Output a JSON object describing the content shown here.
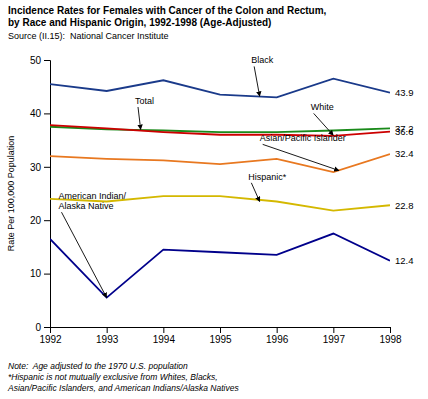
{
  "chart_data": {
    "type": "line",
    "title": "Incidence Rates for Females with Cancer of the Colon and Rectum,\nby Race and Hispanic Origin, 1992-1998 (Age-Adjusted)",
    "subtitle": "Source (II.15):  National Cancer Institute",
    "annotations": [
      "Note:  Age adjusted to the 1970 U.S. population",
      "*Hispanic is not mutually exclusive from Whites, Blacks,",
      "Asian/Pacific Islanders, and American Indians/Alaska Natives"
    ],
    "ylabel": "Rate Per 100,000 Population",
    "x": [
      1992,
      1993,
      1994,
      1995,
      1996,
      1997,
      1998
    ],
    "xlim": [
      1992,
      1998
    ],
    "xticks": [
      1992,
      1993,
      1994,
      1995,
      1996,
      1997,
      1998
    ],
    "ylim": [
      0,
      50
    ],
    "yticks": [
      0,
      10,
      20,
      30,
      40,
      50
    ],
    "grid": false,
    "series": [
      {
        "name": "Black",
        "color": "#1a3a8a",
        "values": [
          45.5,
          44.2,
          46.2,
          43.5,
          43.0,
          46.5,
          43.9
        ],
        "value_labels": [
          null,
          null,
          null,
          null,
          null,
          null,
          "43.9"
        ],
        "label_x": 1995.55,
        "label_y": 48.8,
        "arrow_x": 1995.7,
        "arrow_y": 43.2
      },
      {
        "name": "Total",
        "color": "#1a8a1a",
        "values": [
          37.5,
          37.0,
          36.8,
          36.5,
          36.5,
          36.8,
          37.2
        ],
        "value_labels": [
          null,
          null,
          null,
          null,
          null,
          null,
          "37.2"
        ],
        "label_x": 1993.5,
        "label_y": 41.2,
        "arrow_x": 1993.6,
        "arrow_y": 37.0
      },
      {
        "name": "White",
        "color": "#cc0000",
        "values": [
          37.8,
          37.2,
          36.5,
          36.0,
          36.0,
          35.8,
          36.6
        ],
        "value_labels": [
          null,
          null,
          null,
          null,
          null,
          null,
          "36.6"
        ],
        "label_x": 1996.6,
        "label_y": 40.0,
        "arrow_x": 1997.0,
        "arrow_y": 35.9
      },
      {
        "name": "Asian/Pacific Islander",
        "color": "#e87820",
        "values": [
          32.0,
          31.5,
          31.2,
          30.5,
          31.5,
          29.0,
          32.4
        ],
        "value_labels": [
          null,
          null,
          null,
          null,
          null,
          null,
          "32.4"
        ],
        "label_x": 1995.7,
        "label_y": 34.2,
        "arrow_x": 1997.1,
        "arrow_y": 29.3
      },
      {
        "name": "Hispanic*",
        "color": "#d4b800",
        "values": [
          24.0,
          23.5,
          24.5,
          24.5,
          23.5,
          21.8,
          22.8
        ],
        "value_labels": [
          null,
          null,
          null,
          null,
          null,
          null,
          "22.8"
        ],
        "label_x": 1995.5,
        "label_y": 27.0,
        "arrow_x": 1995.7,
        "arrow_y": 23.5
      },
      {
        "name": "American Indian/\nAlaska Native",
        "color": "#00008B",
        "values": [
          16.5,
          5.5,
          14.5,
          14.0,
          13.5,
          17.5,
          12.4
        ],
        "value_labels": [
          null,
          null,
          null,
          null,
          null,
          null,
          "12.4"
        ],
        "label_x": 1992.15,
        "label_y": 21.5,
        "arrow_x": 1993.0,
        "arrow_y": 5.5
      }
    ]
  }
}
